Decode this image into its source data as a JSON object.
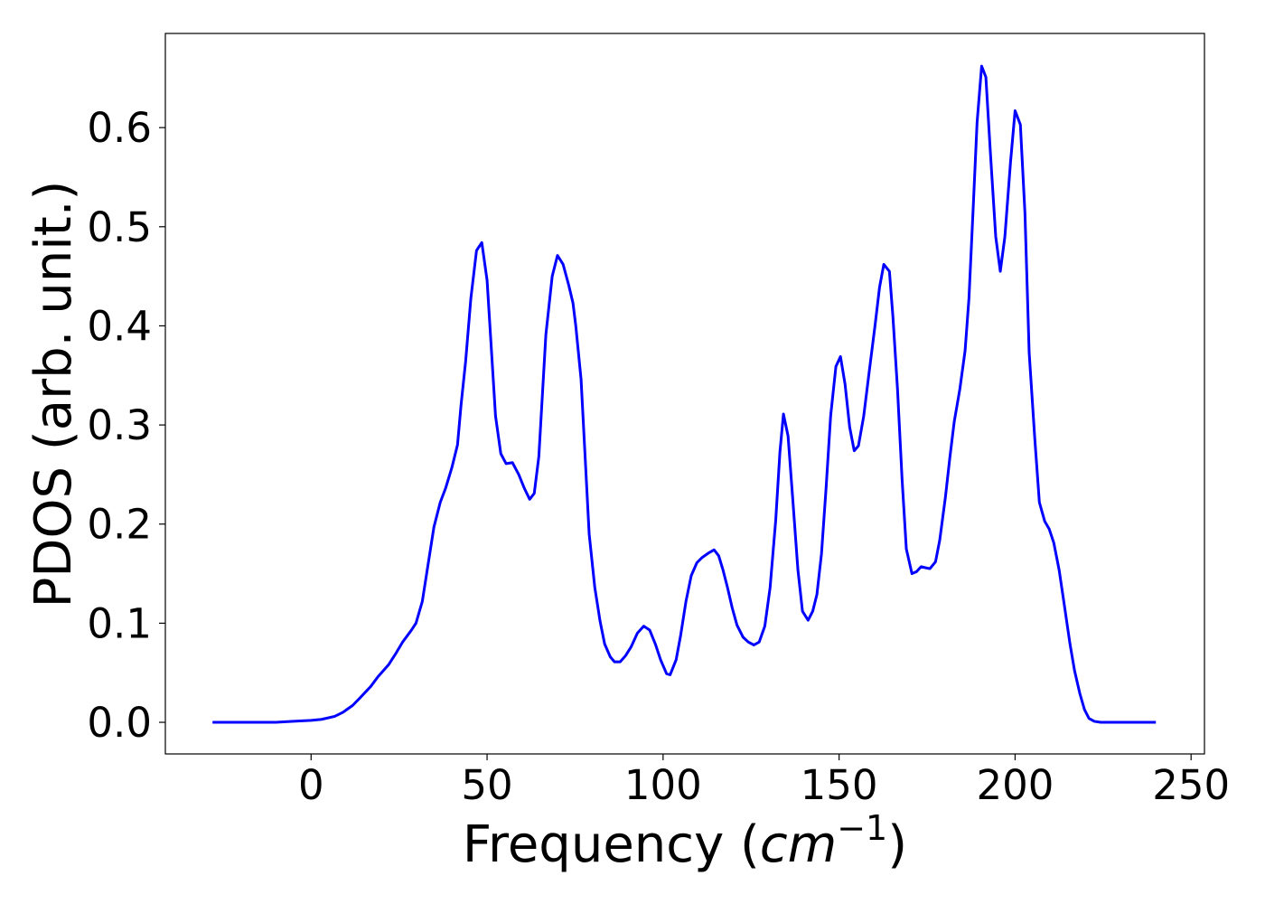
{
  "chart_data": {
    "type": "line",
    "xlabel": [
      "Frequency (",
      "cm",
      "−1",
      ")"
    ],
    "ylabel": "PDOS (arb. unit.)",
    "xlim": [
      -41.4,
      253.8
    ],
    "ylim": [
      -0.0319,
      0.695
    ],
    "xticks": [
      0,
      50,
      100,
      150,
      200,
      250
    ],
    "yticks": [
      {
        "value": 0,
        "label": "0.0"
      },
      0.1,
      0.2,
      0.3,
      0.4,
      0.5,
      0.6
    ],
    "grid": false,
    "series": [
      {
        "color": "#0000ff",
        "x": [
          -28,
          -20,
          -10,
          -5,
          0,
          3,
          6.7,
          9,
          11.8,
          14,
          16.9,
          19,
          22,
          24,
          26,
          28.5,
          29.8,
          31.6,
          33.4,
          34.9,
          36.7,
          38.2,
          40,
          41.6,
          42.6,
          43.9,
          45.4,
          47,
          48.5,
          50,
          52.4,
          53.9,
          55.4,
          57.2,
          59,
          60.6,
          62.1,
          63.4,
          64.7,
          66.7,
          68.5,
          70,
          71.6,
          73.2,
          74.4,
          75.2,
          76.7,
          79,
          80.6,
          82.1,
          83.4,
          85,
          86.2,
          87.8,
          89.3,
          90.9,
          92.7,
          94.5,
          96.2,
          97.8,
          99.3,
          101,
          102,
          103.7,
          105,
          106.5,
          108,
          109.6,
          111,
          113,
          114.5,
          115.8,
          117,
          118.3,
          119.6,
          121,
          122.7,
          124.2,
          125.8,
          127.3,
          128.9,
          130.4,
          132,
          133.2,
          134.2,
          135.5,
          136.8,
          138.3,
          139.6,
          141.2,
          142.5,
          143.7,
          145,
          146.3,
          147.6,
          149.1,
          150.4,
          151.7,
          153,
          154.3,
          155.5,
          157,
          158.6,
          160.2,
          161.5,
          162.7,
          164.3,
          165.3,
          166.6,
          167.9,
          169.1,
          170.7,
          172,
          173.3,
          174.5,
          175.8,
          177.4,
          178.6,
          180.2,
          181.5,
          182.7,
          184.3,
          185.8,
          186.9,
          188.1,
          189.2,
          190.5,
          191.7,
          193,
          194.5,
          195.8,
          197.1,
          198.7,
          200,
          201.5,
          202.8,
          204,
          205.6,
          206.9,
          208.4,
          209.7,
          211,
          212.5,
          214,
          215.6,
          216.9,
          218.4,
          219.7,
          221,
          222.5,
          224.3,
          230,
          240
        ],
        "values": [
          0,
          0,
          0,
          0.001,
          0.002,
          0.003,
          0.006,
          0.01,
          0.017,
          0.025,
          0.036,
          0.046,
          0.058,
          0.069,
          0.081,
          0.093,
          0.1,
          0.122,
          0.163,
          0.197,
          0.222,
          0.236,
          0.257,
          0.28,
          0.32,
          0.364,
          0.428,
          0.476,
          0.484,
          0.446,
          0.309,
          0.271,
          0.261,
          0.262,
          0.25,
          0.236,
          0.225,
          0.231,
          0.268,
          0.391,
          0.45,
          0.471,
          0.462,
          0.441,
          0.423,
          0.4,
          0.346,
          0.19,
          0.136,
          0.102,
          0.079,
          0.066,
          0.061,
          0.061,
          0.067,
          0.076,
          0.09,
          0.097,
          0.093,
          0.079,
          0.063,
          0.049,
          0.048,
          0.063,
          0.088,
          0.122,
          0.148,
          0.161,
          0.166,
          0.171,
          0.174,
          0.168,
          0.154,
          0.136,
          0.116,
          0.098,
          0.086,
          0.081,
          0.078,
          0.081,
          0.097,
          0.136,
          0.204,
          0.273,
          0.311,
          0.289,
          0.227,
          0.154,
          0.112,
          0.103,
          0.112,
          0.129,
          0.17,
          0.236,
          0.309,
          0.359,
          0.369,
          0.341,
          0.298,
          0.274,
          0.279,
          0.309,
          0.355,
          0.4,
          0.439,
          0.462,
          0.455,
          0.409,
          0.336,
          0.245,
          0.175,
          0.15,
          0.152,
          0.157,
          0.156,
          0.155,
          0.162,
          0.184,
          0.227,
          0.268,
          0.303,
          0.336,
          0.375,
          0.428,
          0.519,
          0.605,
          0.662,
          0.651,
          0.574,
          0.49,
          0.455,
          0.49,
          0.565,
          0.617,
          0.603,
          0.514,
          0.373,
          0.286,
          0.222,
          0.203,
          0.195,
          0.181,
          0.154,
          0.118,
          0.079,
          0.052,
          0.029,
          0.013,
          0.004,
          0.001,
          0,
          0,
          0
        ]
      }
    ]
  }
}
